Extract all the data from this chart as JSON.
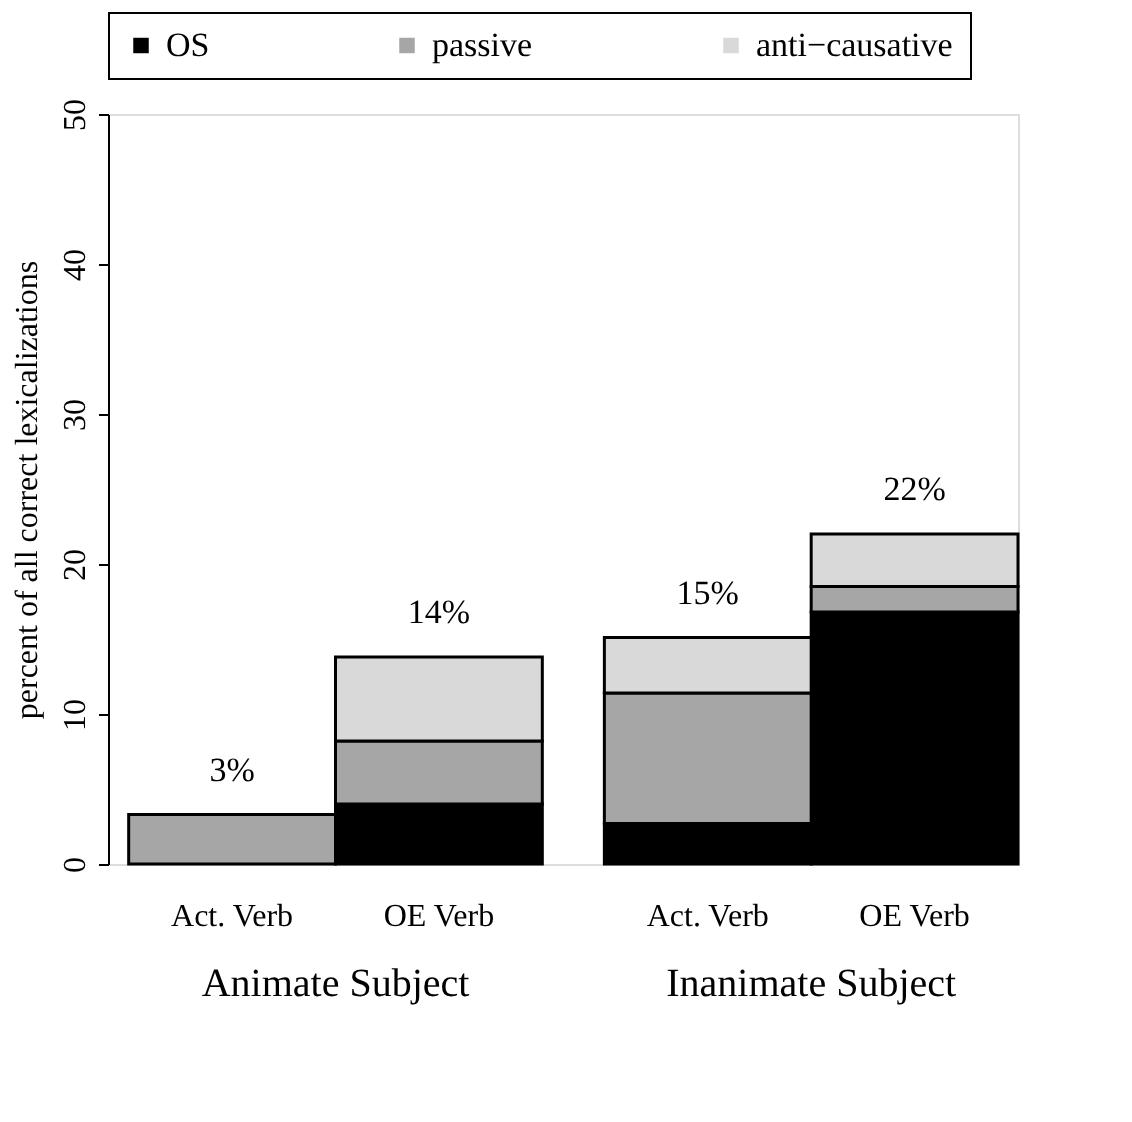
{
  "chart_data": {
    "type": "bar",
    "stacked": true,
    "ylabel": "percent of all correct lexicalizations",
    "categories": [
      "Act. Verb",
      "OE Verb",
      "Act. Verb",
      "OE Verb"
    ],
    "series": [
      {
        "name": "OS",
        "color": "#000000",
        "values": [
          0,
          4.0,
          2.7,
          16.8
        ]
      },
      {
        "name": "passive",
        "color": "#a6a6a6",
        "values": [
          3.3,
          4.2,
          8.7,
          1.7
        ]
      },
      {
        "name": "anti−causative",
        "color": "#d9d9d9",
        "values": [
          0,
          5.6,
          3.7,
          3.5
        ]
      }
    ],
    "totals": [
      "3%",
      "14%",
      "15%",
      "22%"
    ],
    "annotations": [
      "Animate Subject",
      "Inanimate Subject"
    ],
    "ylim": [
      0,
      50
    ],
    "yticks": [
      0,
      10,
      20,
      30,
      40,
      50
    ],
    "grid": false,
    "legend": "top"
  }
}
